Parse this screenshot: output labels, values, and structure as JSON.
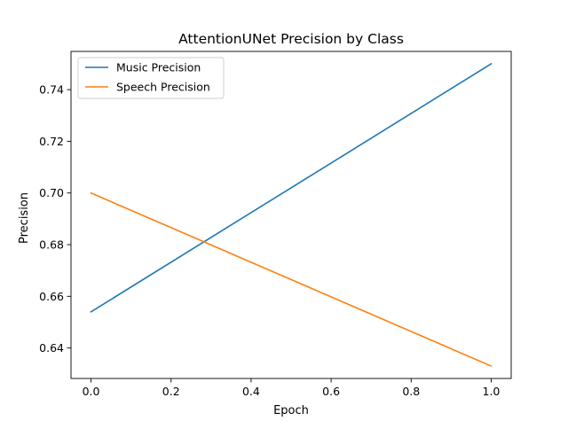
{
  "chart_data": {
    "type": "line",
    "title": "AttentionUNet Precision by Class",
    "xlabel": "Epoch",
    "ylabel": "Precision",
    "x": [
      0.0,
      1.0
    ],
    "series": [
      {
        "name": "Music Precision",
        "color": "#1f77b4",
        "values": [
          0.654,
          0.75
        ]
      },
      {
        "name": "Speech Precision",
        "color": "#ff7f0e",
        "values": [
          0.7,
          0.633
        ]
      }
    ],
    "xlim": [
      -0.05,
      1.05
    ],
    "ylim": [
      0.6282,
      0.7548
    ],
    "xticks": [
      0.0,
      0.2,
      0.4,
      0.6,
      0.8,
      1.0
    ],
    "xtick_labels": [
      "0.0",
      "0.2",
      "0.4",
      "0.6",
      "0.8",
      "1.0"
    ],
    "yticks": [
      0.64,
      0.66,
      0.68,
      0.7,
      0.72,
      0.74
    ],
    "ytick_labels": [
      "0.64",
      "0.66",
      "0.68",
      "0.70",
      "0.72",
      "0.74"
    ],
    "grid": false,
    "legend_position": "top-left"
  }
}
